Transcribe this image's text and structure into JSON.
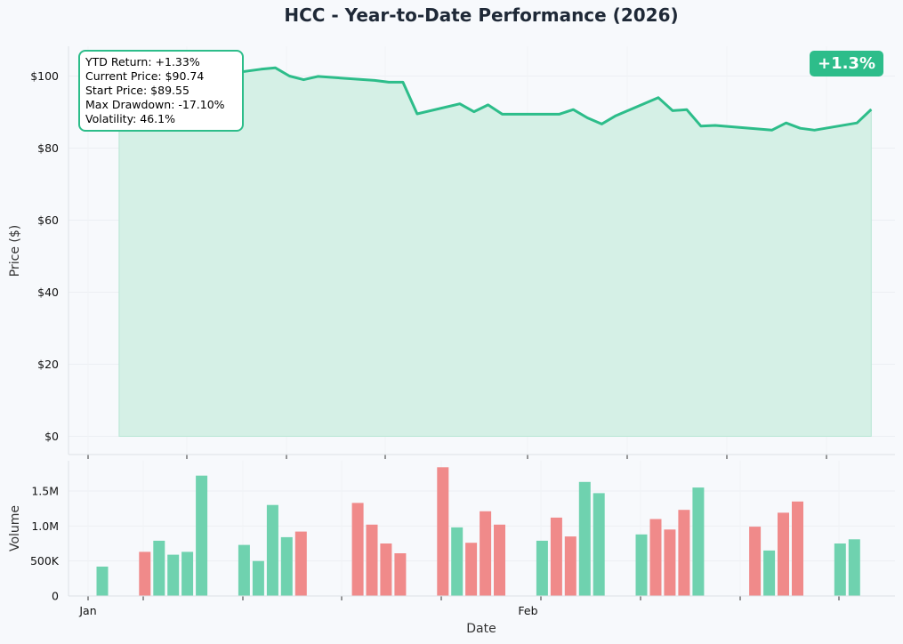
{
  "title": "HCC - Year-to-Date Performance (2026)",
  "badge": "+1.3%",
  "info": {
    "ytd_return": "YTD Return: +1.33%",
    "current_price": "Current Price: $90.74",
    "start_price": "Start Price: $89.55",
    "max_drawdown": "Max Drawdown: -17.10%",
    "volatility": "Volatility: 46.1%"
  },
  "colors": {
    "line": "#2dbd8a",
    "fill": "#d5f0e6",
    "up": "#6fd2af",
    "down": "#f08a8a",
    "badge": "#2dbd8a"
  },
  "chart_data": [
    {
      "type": "area",
      "title": "HCC - Year-to-Date Performance (2026)",
      "ylabel": "Price ($)",
      "ylim": [
        0,
        107
      ],
      "yticks": [
        0,
        20,
        40,
        60,
        80,
        100
      ],
      "ytick_labels": [
        "$0",
        "$20",
        "$40",
        "$60",
        "$80",
        "$100"
      ],
      "grid": true,
      "x": [
        "2026-01-02",
        "2026-01-05",
        "2026-01-06",
        "2026-01-07",
        "2026-01-08",
        "2026-01-09",
        "2026-01-12",
        "2026-01-13",
        "2026-01-14",
        "2026-01-15",
        "2026-01-16",
        "2026-01-20",
        "2026-01-21",
        "2026-01-22",
        "2026-01-23",
        "2026-01-26",
        "2026-01-27",
        "2026-01-28",
        "2026-01-29",
        "2026-01-30",
        "2026-02-02",
        "2026-02-03",
        "2026-02-04",
        "2026-02-05",
        "2026-02-06",
        "2026-02-09",
        "2026-02-10",
        "2026-02-11",
        "2026-02-12",
        "2026-02-13",
        "2026-02-17",
        "2026-02-18",
        "2026-02-19",
        "2026-02-20",
        "2026-02-23",
        "2026-02-24"
      ],
      "values": [
        89.55,
        96.0,
        95.5,
        97.5,
        99.5,
        100.3,
        101.9,
        102.3,
        100.0,
        99.0,
        99.9,
        98.8,
        98.3,
        98.3,
        89.5,
        92.3,
        90.1,
        92.0,
        89.4,
        89.4,
        89.4,
        90.7,
        88.4,
        86.7,
        89.0,
        94.0,
        90.4,
        90.7,
        86.1,
        86.3,
        85.0,
        87.0,
        85.5,
        85.0,
        87.0,
        90.74
      ]
    },
    {
      "type": "bar",
      "xlabel": "Date",
      "ylabel": "Volume",
      "ylim": [
        0,
        1950000
      ],
      "yticks": [
        0,
        500000,
        1000000,
        1500000
      ],
      "ytick_labels": [
        "0",
        "500K",
        "1.0M",
        "1.5M"
      ],
      "xtick_labels": [
        {
          "label": "Jan",
          "date": "2026-01-01"
        },
        {
          "label": "Feb",
          "date": "2026-02-01"
        }
      ],
      "x": [
        "2026-01-02",
        "2026-01-05",
        "2026-01-06",
        "2026-01-07",
        "2026-01-08",
        "2026-01-09",
        "2026-01-12",
        "2026-01-13",
        "2026-01-14",
        "2026-01-15",
        "2026-01-16",
        "2026-01-20",
        "2026-01-21",
        "2026-01-22",
        "2026-01-23",
        "2026-01-26",
        "2026-01-27",
        "2026-01-28",
        "2026-01-29",
        "2026-01-30",
        "2026-02-02",
        "2026-02-03",
        "2026-02-04",
        "2026-02-05",
        "2026-02-06",
        "2026-02-09",
        "2026-02-10",
        "2026-02-11",
        "2026-02-12",
        "2026-02-13",
        "2026-02-17",
        "2026-02-18",
        "2026-02-19",
        "2026-02-20",
        "2026-02-23",
        "2026-02-24"
      ],
      "values": [
        420000,
        630000,
        790000,
        590000,
        630000,
        1720000,
        730000,
        500000,
        1300000,
        840000,
        920000,
        1330000,
        1020000,
        750000,
        610000,
        1840000,
        980000,
        760000,
        1210000,
        1020000,
        790000,
        1120000,
        850000,
        1630000,
        1470000,
        880000,
        1100000,
        950000,
        1230000,
        1550000,
        990000,
        650000,
        1190000,
        1350000,
        750000,
        810000
      ],
      "direction": [
        "up",
        "down",
        "up",
        "up",
        "up",
        "up",
        "up",
        "up",
        "up",
        "up",
        "down",
        "down",
        "down",
        "down",
        "down",
        "down",
        "up",
        "down",
        "down",
        "down",
        "up",
        "down",
        "down",
        "up",
        "up",
        "up",
        "down",
        "down",
        "down",
        "up",
        "down",
        "up",
        "down",
        "down",
        "up",
        "up"
      ]
    }
  ]
}
